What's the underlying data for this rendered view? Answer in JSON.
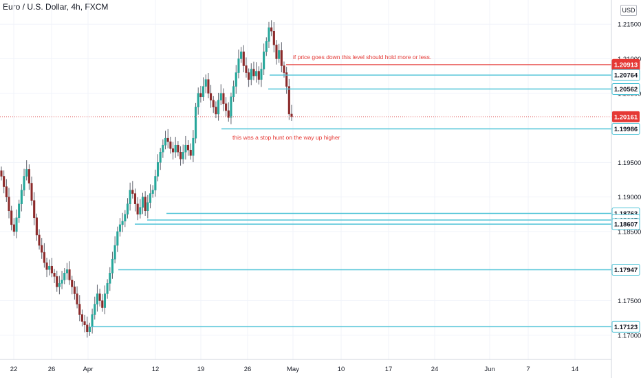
{
  "header": {
    "title": "Euro / U.S. Dollar, 4h, FXCM",
    "currency": "USD"
  },
  "chart_data": {
    "type": "candlestick",
    "ylim": [
      1.1665,
      1.2185
    ],
    "y_ticks": [
      "1.21500",
      "1.21000",
      "1.20500",
      "1.19500",
      "1.19000",
      "1.18500",
      "1.17500",
      "1.17000"
    ],
    "x_ticks": [
      "22",
      "26",
      "Apr",
      "12",
      "19",
      "26",
      "May",
      "10",
      "17",
      "24",
      "Jun",
      "7",
      "14"
    ],
    "current_price": {
      "label": "1.20161",
      "value": 1.20161
    },
    "levels": [
      {
        "label": "1.20913",
        "value": 1.20913,
        "color": "#e53935",
        "start": "Apr 30"
      },
      {
        "label": "1.20764",
        "value": 1.20764,
        "color": "#4fc3d7",
        "start": "Apr 28"
      },
      {
        "label": "1.20562",
        "value": 1.20562,
        "color": "#4fc3d7",
        "start": "Apr 28"
      },
      {
        "label": "1.19986",
        "value": 1.19986,
        "color": "#4fc3d7",
        "start": "Apr 22"
      },
      {
        "label": "1.18763",
        "value": 1.18763,
        "color": "#4fc3d7",
        "start": "Apr 13"
      },
      {
        "label": "1.18667",
        "value": 1.18667,
        "color": "#4fc3d7",
        "start": "Apr 10"
      },
      {
        "label": "1.18607",
        "value": 1.18607,
        "color": "#4fc3d7",
        "start": "Apr 9"
      },
      {
        "label": "1.17947",
        "value": 1.17947,
        "color": "#4fc3d7",
        "start": "Apr 6"
      },
      {
        "label": "1.17123",
        "value": 1.17123,
        "color": "#4fc3d7",
        "start": "Mar 31"
      }
    ],
    "annotations": [
      {
        "text": "if price goes down this level should hold more or less.",
        "color": "#e53935"
      },
      {
        "text": "this was a stop hunt on the way up higher",
        "color": "#e53935"
      }
    ],
    "up_color": "#26a69a",
    "down_color": "#8b2a2a",
    "closes": [
      1.193,
      1.1915,
      1.19,
      1.188,
      1.186,
      1.185,
      1.187,
      1.189,
      1.191,
      1.193,
      1.194,
      1.192,
      1.1895,
      1.187,
      1.1845,
      1.183,
      1.182,
      1.1805,
      1.1795,
      1.18,
      1.179,
      1.1785,
      1.177,
      1.1775,
      1.178,
      1.179,
      1.1795,
      1.178,
      1.177,
      1.176,
      1.1745,
      1.173,
      1.172,
      1.1715,
      1.1705,
      1.1712,
      1.173,
      1.1745,
      1.176,
      1.175,
      1.174,
      1.176,
      1.1775,
      1.179,
      1.181,
      1.183,
      1.185,
      1.186,
      1.1865,
      1.1875,
      1.189,
      1.191,
      1.1905,
      1.189,
      1.1875,
      1.1885,
      1.19,
      1.188,
      1.1892,
      1.1905,
      1.191,
      1.193,
      1.195,
      1.1965,
      1.1975,
      1.1985,
      1.198,
      1.197,
      1.1965,
      1.1975,
      1.1965,
      1.1955,
      1.1965,
      1.1975,
      1.1968,
      1.196,
      1.1985,
      1.203,
      1.205,
      1.2045,
      1.206,
      1.207,
      1.205,
      1.204,
      1.203,
      1.202,
      1.204,
      1.205,
      1.2035,
      1.2025,
      1.2015,
      1.2045,
      1.206,
      1.208,
      1.21,
      1.211,
      1.209,
      1.208,
      1.207,
      1.2085,
      1.2075,
      1.2082,
      1.207,
      1.2085,
      1.211,
      1.2125,
      1.2145,
      1.214,
      1.212,
      1.21,
      1.2112,
      1.209,
      1.208,
      1.206,
      1.202,
      1.2016
    ]
  }
}
